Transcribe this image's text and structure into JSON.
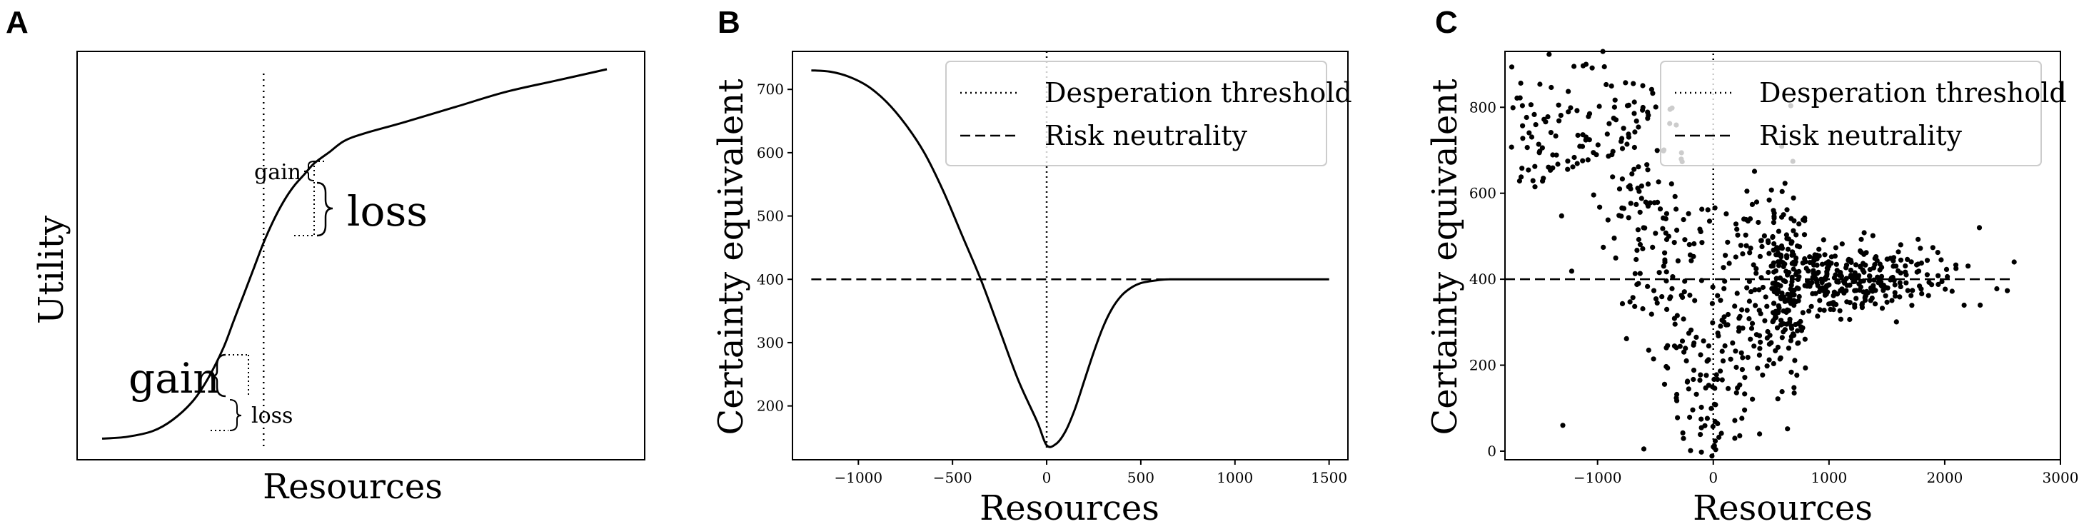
{
  "figure": {
    "panels": [
      {
        "letter": "A"
      },
      {
        "letter": "B"
      },
      {
        "letter": "C"
      }
    ]
  },
  "chart_data": [
    {
      "panel": "A",
      "type": "line",
      "xlabel": "Resources",
      "ylabel": "Utility",
      "ticks": "none",
      "xlim": [
        0,
        1
      ],
      "ylim": [
        0,
        1
      ],
      "threshold_x": 0.32,
      "series": [
        {
          "style": "solid",
          "x": [
            0,
            0.05,
            0.1,
            0.14,
            0.18,
            0.21,
            0.24,
            0.26,
            0.28,
            0.3,
            0.32,
            0.34,
            0.36,
            0.38,
            0.4,
            0.42,
            0.45,
            0.48,
            0.52,
            0.6,
            0.7,
            0.8,
            0.9,
            1.0
          ],
          "y": [
            0.02,
            0.025,
            0.04,
            0.07,
            0.12,
            0.18,
            0.26,
            0.33,
            0.4,
            0.47,
            0.54,
            0.6,
            0.65,
            0.69,
            0.72,
            0.75,
            0.78,
            0.81,
            0.83,
            0.86,
            0.9,
            0.94,
            0.97,
            1.0
          ]
        }
      ],
      "annotations": [
        {
          "text": "gain",
          "size": "large",
          "side": "below-threshold"
        },
        {
          "text": "loss",
          "size": "small",
          "side": "below-threshold"
        },
        {
          "text": "gain",
          "size": "small",
          "side": "above-threshold"
        },
        {
          "text": "loss",
          "size": "large",
          "side": "above-threshold"
        }
      ]
    },
    {
      "panel": "B",
      "type": "line",
      "xlabel": "Resources",
      "ylabel": "Certainty equivalent",
      "xlim": [
        -1350,
        1600
      ],
      "ylim": [
        115,
        760
      ],
      "xticks": [
        -1000,
        -500,
        0,
        500,
        1000,
        1500
      ],
      "xtick_labels": [
        "−1000",
        "−500",
        "0",
        "500",
        "1000",
        "1500"
      ],
      "yticks": [
        200,
        300,
        400,
        500,
        600,
        700
      ],
      "ytick_labels": [
        "200",
        "300",
        "400",
        "500",
        "600",
        "700"
      ],
      "legend": {
        "position": "upper-right",
        "entries": [
          {
            "label": "Desperation threshold",
            "style": "dotted"
          },
          {
            "label": "Risk neutrality",
            "style": "dashed"
          }
        ]
      },
      "threshold_x": 0,
      "risk_neutral_y": 400,
      "series": [
        {
          "style": "solid",
          "x": [
            -1250,
            -1150,
            -1050,
            -950,
            -850,
            -750,
            -650,
            -550,
            -450,
            -350,
            -250,
            -150,
            -50,
            0,
            50,
            100,
            150,
            200,
            250,
            300,
            350,
            400,
            450,
            500,
            550,
            600,
            650,
            700,
            800,
            900,
            1000,
            1200,
            1500
          ],
          "y": [
            730,
            728,
            720,
            705,
            680,
            645,
            600,
            540,
            470,
            400,
            320,
            240,
            175,
            138,
            140,
            160,
            195,
            240,
            285,
            325,
            355,
            375,
            387,
            394,
            397,
            399,
            400,
            400,
            400,
            400,
            400,
            400,
            400
          ]
        }
      ]
    },
    {
      "panel": "C",
      "type": "scatter",
      "xlabel": "Resources",
      "ylabel": "Certainty equivalent",
      "xlim": [
        -1800,
        3000
      ],
      "ylim": [
        -20,
        930
      ],
      "xticks": [
        -1000,
        0,
        1000,
        2000,
        3000
      ],
      "xtick_labels": [
        "−1000",
        "0",
        "1000",
        "2000",
        "3000"
      ],
      "yticks": [
        0,
        200,
        400,
        600,
        800
      ],
      "ytick_labels": [
        "0",
        "200",
        "400",
        "600",
        "800"
      ],
      "legend": {
        "position": "upper-right",
        "entries": [
          {
            "label": "Desperation threshold",
            "style": "dotted"
          },
          {
            "label": "Risk neutrality",
            "style": "dashed"
          }
        ]
      },
      "threshold_x": 0,
      "risk_neutral_y": 400,
      "risk_neutral_x_range": [
        -1800,
        2600
      ],
      "scatter": {
        "n_points": 900,
        "generated_pattern": "points centred on the panel B certainty-equivalent curve with noise",
        "noise_sd": 80,
        "outliers": [
          {
            "x": -1100,
            "y": 900
          },
          {
            "x": -1300,
            "y": 60
          },
          {
            "x": -600,
            "y": 5
          },
          {
            "x": 2300,
            "y": 520
          },
          {
            "x": 2600,
            "y": 440
          },
          {
            "x": 400,
            "y": 40
          },
          {
            "x": 0,
            "y": 10
          }
        ]
      }
    }
  ]
}
